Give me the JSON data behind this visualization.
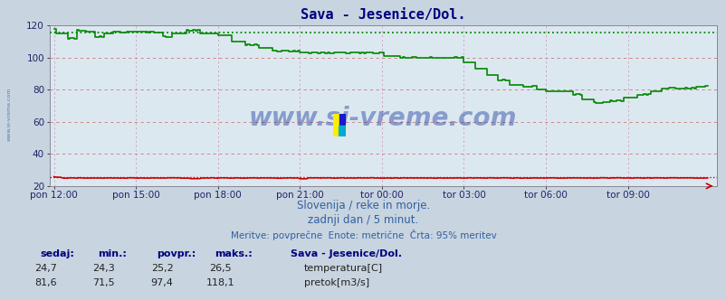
{
  "title": "Sava - Jesenice/Dol.",
  "title_color": "#000080",
  "bg_color": "#c8d4e0",
  "plot_bg_color": "#dce8f0",
  "x_tick_labels": [
    "pon 12:00",
    "pon 15:00",
    "pon 18:00",
    "pon 21:00",
    "tor 00:00",
    "tor 03:00",
    "tor 06:00",
    "tor 09:00"
  ],
  "x_tick_positions": [
    0,
    36,
    72,
    108,
    144,
    180,
    216,
    252
  ],
  "total_points": 288,
  "ylim_bottom": 20,
  "ylim_top": 120,
  "yticks": [
    20,
    40,
    60,
    80,
    100,
    120
  ],
  "temp_color": "#cc0000",
  "flow_color": "#008800",
  "watermark_text": "www.si-vreme.com",
  "watermark_color": "#2040a0",
  "watermark_alpha": 0.45,
  "watermark_fontsize": 20,
  "subtitle1": "Slovenija / reke in morje.",
  "subtitle2": "zadnji dan / 5 minut.",
  "subtitle3": "Meritve: povprečne  Enote: metrične  Črta: 95% meritev",
  "subtitle_color": "#3060a0",
  "subtitle_fontsize": 8.5,
  "stats_color": "#000080",
  "stats_header": [
    "sedaj:",
    "min.:",
    "povpr.:",
    "maks.:"
  ],
  "temp_stats": [
    "24,7",
    "24,3",
    "25,2",
    "26,5"
  ],
  "flow_stats": [
    "81,6",
    "71,5",
    "97,4",
    "118,1"
  ],
  "legend_label_temp": "temperatura[C]",
  "legend_label_flow": "pretok[m3/s]",
  "legend_station": "Sava - Jesenice/Dol.",
  "flow_dotted_level": 115.5,
  "temp_dotted_level": 25.5,
  "side_watermark": "www.si-vreme.com",
  "side_watermark_color": "#3060a0"
}
